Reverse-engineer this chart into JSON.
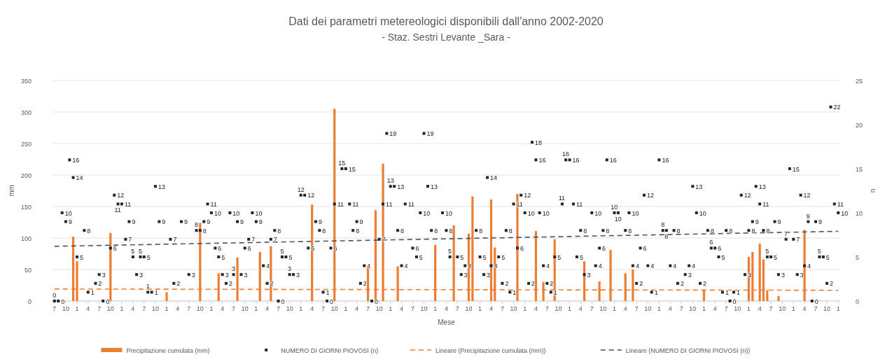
{
  "chart_data": {
    "type": "bar",
    "title": "Dati dei parametri metereologici disponibili dall'anno 2002-2020",
    "subtitle": "- Staz. Sestri Levante _Sara -",
    "xlabel": "Mese",
    "ylabel": "mm",
    "y2label": "n",
    "xlim": [
      "2002-06-15",
      "2020-01-17"
    ],
    "xticks": [
      {
        "value": "2002-07",
        "label": "7"
      },
      {
        "value": "2002-10",
        "label": "10"
      },
      {
        "value": "2003-01",
        "label": "1"
      },
      {
        "value": "2003-04",
        "label": "4"
      },
      {
        "value": "2003-07",
        "label": "7"
      },
      {
        "value": "2003-10",
        "label": "10"
      },
      {
        "value": "2004-01",
        "label": "1"
      },
      {
        "value": "2004-04",
        "label": "4"
      },
      {
        "value": "2004-07",
        "label": "7"
      },
      {
        "value": "2004-10",
        "label": "10"
      },
      {
        "value": "2005-01",
        "label": "1"
      },
      {
        "value": "2005-04",
        "label": "4"
      },
      {
        "value": "2005-07",
        "label": "7"
      },
      {
        "value": "2005-10",
        "label": "10"
      },
      {
        "value": "2006-01",
        "label": "1"
      },
      {
        "value": "2006-04",
        "label": "4"
      },
      {
        "value": "2006-07",
        "label": "7"
      },
      {
        "value": "2006-10",
        "label": "10"
      },
      {
        "value": "2007-01",
        "label": "1"
      },
      {
        "value": "2007-04",
        "label": "4"
      },
      {
        "value": "2007-07",
        "label": "7"
      },
      {
        "value": "2007-10",
        "label": "10"
      },
      {
        "value": "2008-01",
        "label": "1"
      },
      {
        "value": "2008-04",
        "label": "4"
      },
      {
        "value": "2008-07",
        "label": "7"
      },
      {
        "value": "2008-10",
        "label": "10"
      },
      {
        "value": "2009-01",
        "label": "1"
      },
      {
        "value": "2009-04",
        "label": "4"
      },
      {
        "value": "2009-07",
        "label": "7"
      },
      {
        "value": "2009-10",
        "label": "10"
      },
      {
        "value": "2010-01",
        "label": "1"
      },
      {
        "value": "2010-04",
        "label": "4"
      },
      {
        "value": "2010-07",
        "label": "7"
      },
      {
        "value": "2010-10",
        "label": "10"
      },
      {
        "value": "2011-01",
        "label": "1"
      },
      {
        "value": "2011-04",
        "label": "4"
      },
      {
        "value": "2011-07",
        "label": "7"
      },
      {
        "value": "2011-10",
        "label": "10"
      },
      {
        "value": "2012-01",
        "label": "1"
      },
      {
        "value": "2012-04",
        "label": "4"
      },
      {
        "value": "2012-07",
        "label": "7"
      },
      {
        "value": "2012-10",
        "label": "10"
      },
      {
        "value": "2013-01",
        "label": "1"
      },
      {
        "value": "2013-04",
        "label": "4"
      },
      {
        "value": "2013-07",
        "label": "7"
      },
      {
        "value": "2013-10",
        "label": "10"
      },
      {
        "value": "2014-01",
        "label": "1"
      },
      {
        "value": "2014-04",
        "label": "4"
      },
      {
        "value": "2014-07",
        "label": "7"
      },
      {
        "value": "2014-10",
        "label": "10"
      },
      {
        "value": "2015-01",
        "label": "1"
      },
      {
        "value": "2015-04",
        "label": "4"
      },
      {
        "value": "2015-07",
        "label": "7"
      },
      {
        "value": "2015-10",
        "label": "10"
      },
      {
        "value": "2016-01",
        "label": "1"
      },
      {
        "value": "2016-04",
        "label": "4"
      },
      {
        "value": "2016-07",
        "label": "7"
      },
      {
        "value": "2016-10",
        "label": "10"
      },
      {
        "value": "2017-01",
        "label": "1"
      },
      {
        "value": "2017-04",
        "label": "4"
      },
      {
        "value": "2017-07",
        "label": "7"
      },
      {
        "value": "2017-10",
        "label": "10"
      },
      {
        "value": "2018-01",
        "label": "1"
      },
      {
        "value": "2018-04",
        "label": "4"
      },
      {
        "value": "2018-07",
        "label": "7"
      },
      {
        "value": "2018-10",
        "label": "10"
      },
      {
        "value": "2019-01",
        "label": "1"
      },
      {
        "value": "2019-04",
        "label": "4"
      },
      {
        "value": "2019-07",
        "label": "7"
      },
      {
        "value": "2019-10",
        "label": "10"
      },
      {
        "value": "2020-01",
        "label": "1"
      }
    ],
    "ylim": [
      0,
      350
    ],
    "yticks": [
      0,
      50,
      100,
      150,
      200,
      250,
      300,
      350
    ],
    "y2lim": [
      0,
      25
    ],
    "y2ticks": [
      0,
      5,
      10,
      15,
      20,
      25
    ],
    "grid": "y",
    "legend": "bottom",
    "series": [
      {
        "name": "Precipitazione cumulata (mm)",
        "color": "#ed7d31",
        "x": [
          "2002-12",
          "2003-01",
          "2003-10",
          "2005-01",
          "2005-10",
          "2006-03",
          "2006-08",
          "2007-02",
          "2007-05",
          "2008-04",
          "2008-10",
          "2009-07",
          "2009-09",
          "2009-11",
          "2010-03",
          "2011-01",
          "2011-06",
          "2011-10",
          "2011-11",
          "2012-04",
          "2012-05",
          "2012-11",
          "2013-04",
          "2013-06",
          "2013-09",
          "2014-05",
          "2014-09",
          "2014-12",
          "2015-04",
          "2015-06",
          "2017-01",
          "2018-01",
          "2018-02",
          "2018-04",
          "2018-05",
          "2018-06",
          "2018-09",
          "2019-04"
        ],
        "values": [
          102,
          63,
          108,
          14,
          124,
          44,
          69,
          78,
          87,
          153,
          305,
          55,
          144,
          218,
          55,
          89,
          120,
          107,
          166,
          161,
          85,
          170,
          111,
          30,
          98,
          63,
          31,
          81,
          44,
          50,
          17,
          70,
          78,
          91,
          66,
          17,
          8,
          113
        ]
      },
      {
        "name": "NUMERO DI GIORNI PIOVOSI (n)",
        "type": "scatter",
        "axis": "y2",
        "color": "#262626",
        "marker": "square",
        "data_labels": true,
        "x": [
          "2002-07",
          "2002-08",
          "2002-09",
          "2002-10",
          "2002-11",
          "2002-12",
          "2003-01",
          "2003-03",
          "2003-04",
          "2003-06",
          "2003-07",
          "2003-08",
          "2003-10",
          "2003-11",
          "2003-12",
          "2004-01",
          "2004-02",
          "2004-03",
          "2004-04",
          "2004-05",
          "2004-06",
          "2004-07",
          "2004-08",
          "2004-09",
          "2004-10",
          "2004-11",
          "2005-02",
          "2005-03",
          "2005-05",
          "2005-07",
          "2005-09",
          "2005-10",
          "2005-11",
          "2005-12",
          "2006-01",
          "2006-02",
          "2006-03",
          "2006-04",
          "2006-05",
          "2006-06",
          "2006-07",
          "2006-08",
          "2006-09",
          "2006-10",
          "2006-11",
          "2006-12",
          "2007-01",
          "2007-03",
          "2007-04",
          "2007-05",
          "2007-06",
          "2007-07",
          "2007-08",
          "2007-09",
          "2007-10",
          "2007-11",
          "2008-01",
          "2008-02",
          "2008-03",
          "2008-05",
          "2008-06",
          "2008-07",
          "2008-08",
          "2008-09",
          "2008-10",
          "2008-12",
          "2009-01",
          "2009-02",
          "2009-03",
          "2009-04",
          "2009-05",
          "2009-06",
          "2009-08",
          "2009-10",
          "2009-11",
          "2009-12",
          "2010-01",
          "2010-02",
          "2010-03",
          "2010-04",
          "2010-05",
          "2010-07",
          "2010-08",
          "2010-09",
          "2010-10",
          "2010-11",
          "2010-12",
          "2011-03",
          "2011-04",
          "2011-05",
          "2011-07",
          "2011-08",
          "2011-09",
          "2011-12",
          "2012-01",
          "2012-02",
          "2012-03",
          "2012-04",
          "2012-06",
          "2012-07",
          "2012-08",
          "2012-09",
          "2012-10",
          "2012-11",
          "2012-12",
          "2013-01",
          "2013-02",
          "2013-03",
          "2013-04",
          "2013-05",
          "2013-06",
          "2013-07",
          "2013-08",
          "2013-09",
          "2013-11",
          "2013-12",
          "2014-01",
          "2014-02",
          "2014-03",
          "2014-04",
          "2014-05",
          "2014-07",
          "2014-08",
          "2014-09",
          "2014-10",
          "2014-11",
          "2015-01",
          "2015-02",
          "2015-04",
          "2015-05",
          "2015-06",
          "2015-07",
          "2015-08",
          "2015-09",
          "2015-10",
          "2015-11",
          "2016-01",
          "2016-02",
          "2016-03",
          "2016-04",
          "2016-05",
          "2016-06",
          "2016-08",
          "2016-09",
          "2016-10",
          "2016-11",
          "2016-12",
          "2017-02",
          "2017-03",
          "2017-04",
          "2017-05",
          "2017-06",
          "2017-07",
          "2017-08",
          "2017-09",
          "2017-11",
          "2017-12",
          "2018-01",
          "2018-02",
          "2018-03",
          "2018-04",
          "2018-05",
          "2018-06",
          "2018-07",
          "2018-08",
          "2018-09",
          "2018-11",
          "2018-12",
          "2019-01",
          "2019-02",
          "2019-03",
          "2019-04",
          "2019-05",
          "2019-06",
          "2019-07",
          "2019-08",
          "2019-09",
          "2019-10",
          "2019-11",
          "2019-12",
          "2020-01"
        ],
        "values": [
          0,
          0,
          10,
          9,
          16,
          14,
          5,
          8,
          1,
          2,
          3,
          0,
          6,
          12,
          11,
          11,
          7,
          9,
          5,
          3,
          5,
          5,
          1,
          1,
          13,
          9,
          7,
          2,
          9,
          3,
          8,
          8,
          9,
          11,
          10,
          6,
          5,
          3,
          2,
          10,
          3,
          9,
          3,
          6,
          7,
          10,
          9,
          4,
          2,
          7,
          8,
          0,
          5,
          5,
          3,
          3,
          12,
          12,
          6,
          9,
          8,
          1,
          0,
          6,
          11,
          15,
          15,
          11,
          8,
          9,
          2,
          4,
          0,
          7,
          11,
          19,
          13,
          13,
          8,
          4,
          11,
          6,
          5,
          10,
          19,
          13,
          8,
          10,
          8,
          5,
          5,
          3,
          4,
          8,
          5,
          3,
          14,
          4,
          5,
          2,
          8,
          1,
          11,
          6,
          12,
          10,
          2,
          18,
          16,
          10,
          4,
          2,
          1,
          5,
          11,
          16,
          16,
          11,
          5,
          8,
          3,
          10,
          4,
          6,
          8,
          16,
          10,
          10,
          8,
          10,
          4,
          2,
          6,
          12,
          4,
          1,
          16,
          8,
          8,
          4,
          8,
          2,
          3,
          4,
          13,
          10,
          2,
          8,
          6,
          6,
          5,
          1,
          8,
          0,
          1,
          12,
          3,
          8,
          9,
          13,
          11,
          8,
          5,
          5,
          9,
          3,
          7,
          15,
          7,
          3,
          12,
          4,
          9,
          0,
          9,
          5,
          5,
          2,
          22,
          11,
          10
        ]
      },
      {
        "name": "Lineare (Precipitazione cumulata (mm))",
        "type": "line",
        "color": "#ed7d31",
        "line_style": "dashed",
        "x": [
          "2002-07",
          "2020-01"
        ],
        "values": [
          19,
          17
        ]
      },
      {
        "name": "Lineare (NUMERO DI GIORNI PIOVOSI (n))",
        "type": "line",
        "axis": "y2",
        "color": "#44546a",
        "line_style": "dashed",
        "x": [
          "2002-07",
          "2020-01"
        ],
        "values": [
          6.2,
          7.9
        ]
      }
    ]
  }
}
